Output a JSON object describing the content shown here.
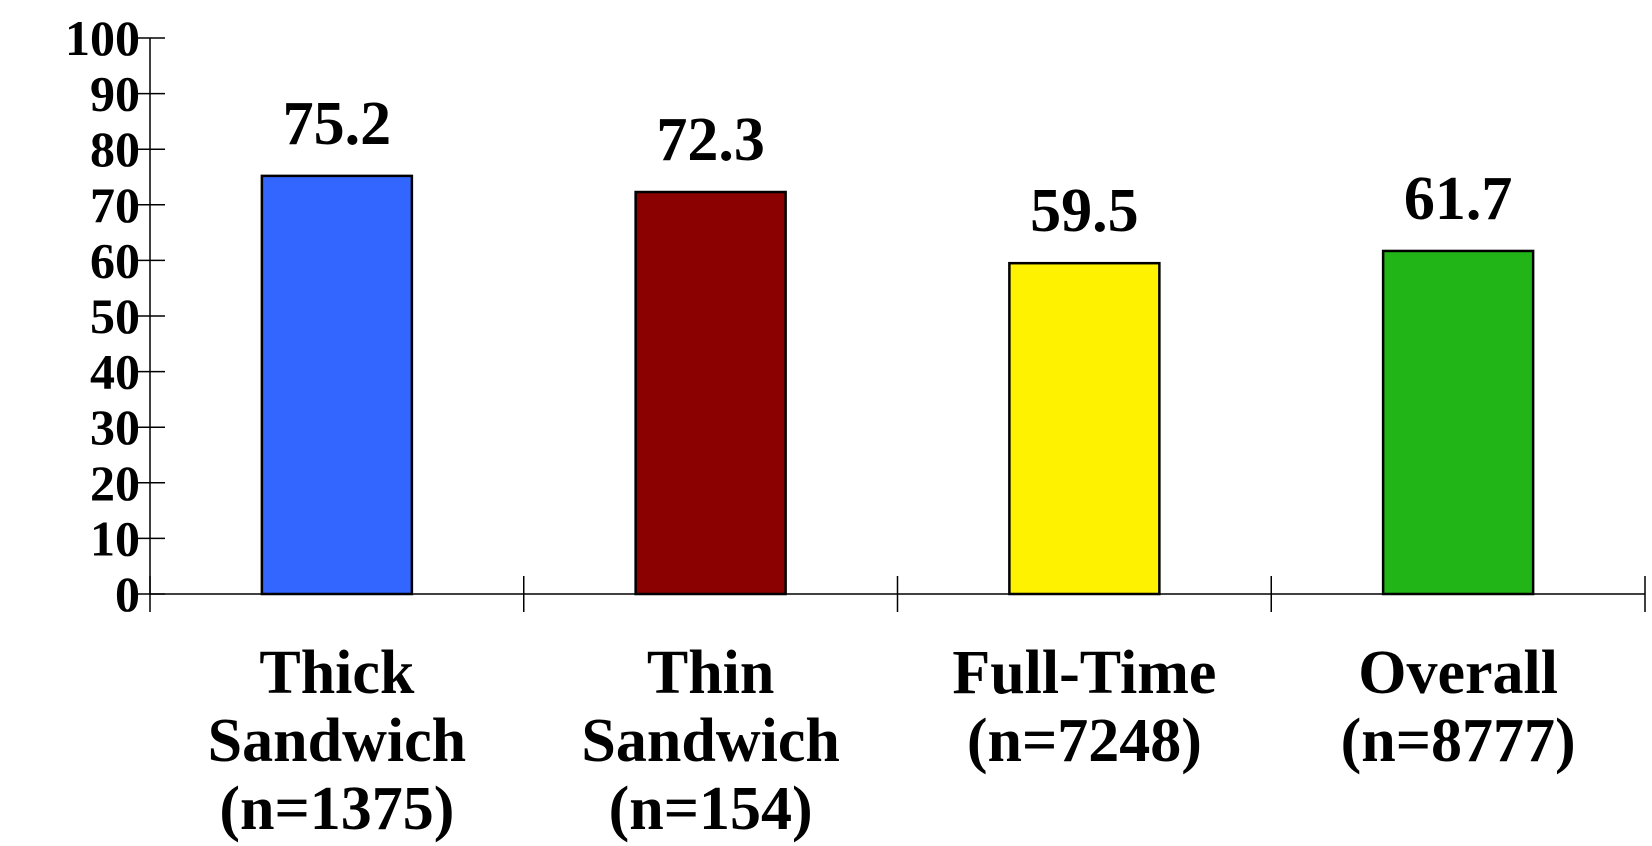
{
  "chart_data": {
    "type": "bar",
    "categories": [
      [
        "Thick",
        "Sandwich",
        "(n=1375)"
      ],
      [
        "Thin",
        "Sandwich",
        "(n=154)"
      ],
      [
        "Full-Time",
        "(n=7248)"
      ],
      [
        "Overall",
        "(n=8777)"
      ]
    ],
    "values": [
      75.2,
      72.3,
      59.5,
      61.7
    ],
    "value_labels": [
      "75.2",
      "72.3",
      "59.5",
      "61.7"
    ],
    "colors": [
      "#3366ff",
      "#8b0000",
      "#fff200",
      "#22b517"
    ],
    "ylim": [
      0,
      100
    ],
    "yticks": [
      0,
      10,
      20,
      30,
      40,
      50,
      60,
      70,
      80,
      90,
      100
    ],
    "ytick_labels": [
      "0",
      "10",
      "20",
      "30",
      "40",
      "50",
      "60",
      "70",
      "80",
      "90",
      "100"
    ],
    "grid": false,
    "legend": false
  }
}
